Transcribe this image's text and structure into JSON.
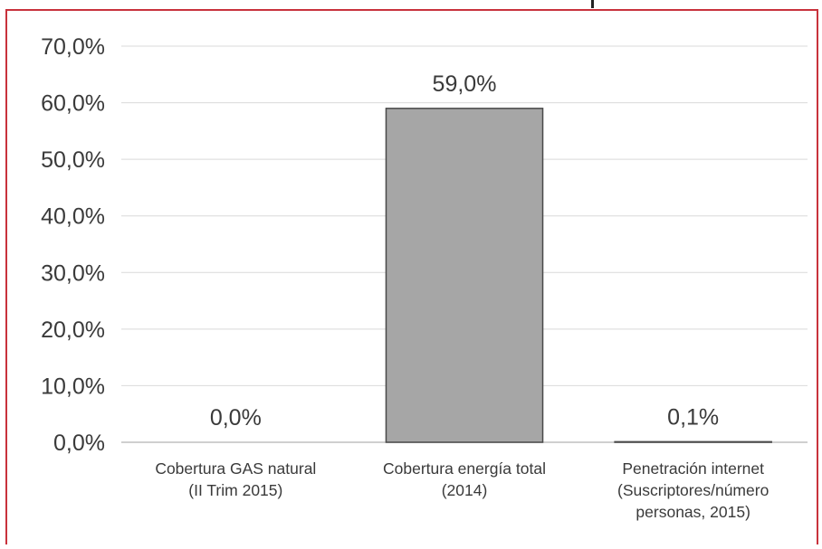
{
  "chart_data": {
    "type": "bar",
    "categories": [
      [
        "Cobertura GAS natural",
        "(II Trim 2015)"
      ],
      [
        "Cobertura energía total",
        "(2014)"
      ],
      [
        "Penetración internet",
        "(Suscriptores/número",
        "personas, 2015)"
      ]
    ],
    "values": [
      0.0,
      59.0,
      0.1
    ],
    "data_labels": [
      "0,0%",
      "59,0%",
      "0,1%"
    ],
    "y_tick_labels": [
      "0,0%",
      "10,0%",
      "20,0%",
      "30,0%",
      "40,0%",
      "50,0%",
      "60,0%",
      "70,0%"
    ],
    "ylim": [
      0,
      70
    ],
    "y_unit": "%",
    "grid": true,
    "colors": {
      "bar": "#a6a6a6",
      "bar_edge": "#4a4a4a",
      "grid": "#d9d9d9",
      "frame": "#c8323c",
      "text": "#3a3a3a"
    }
  }
}
